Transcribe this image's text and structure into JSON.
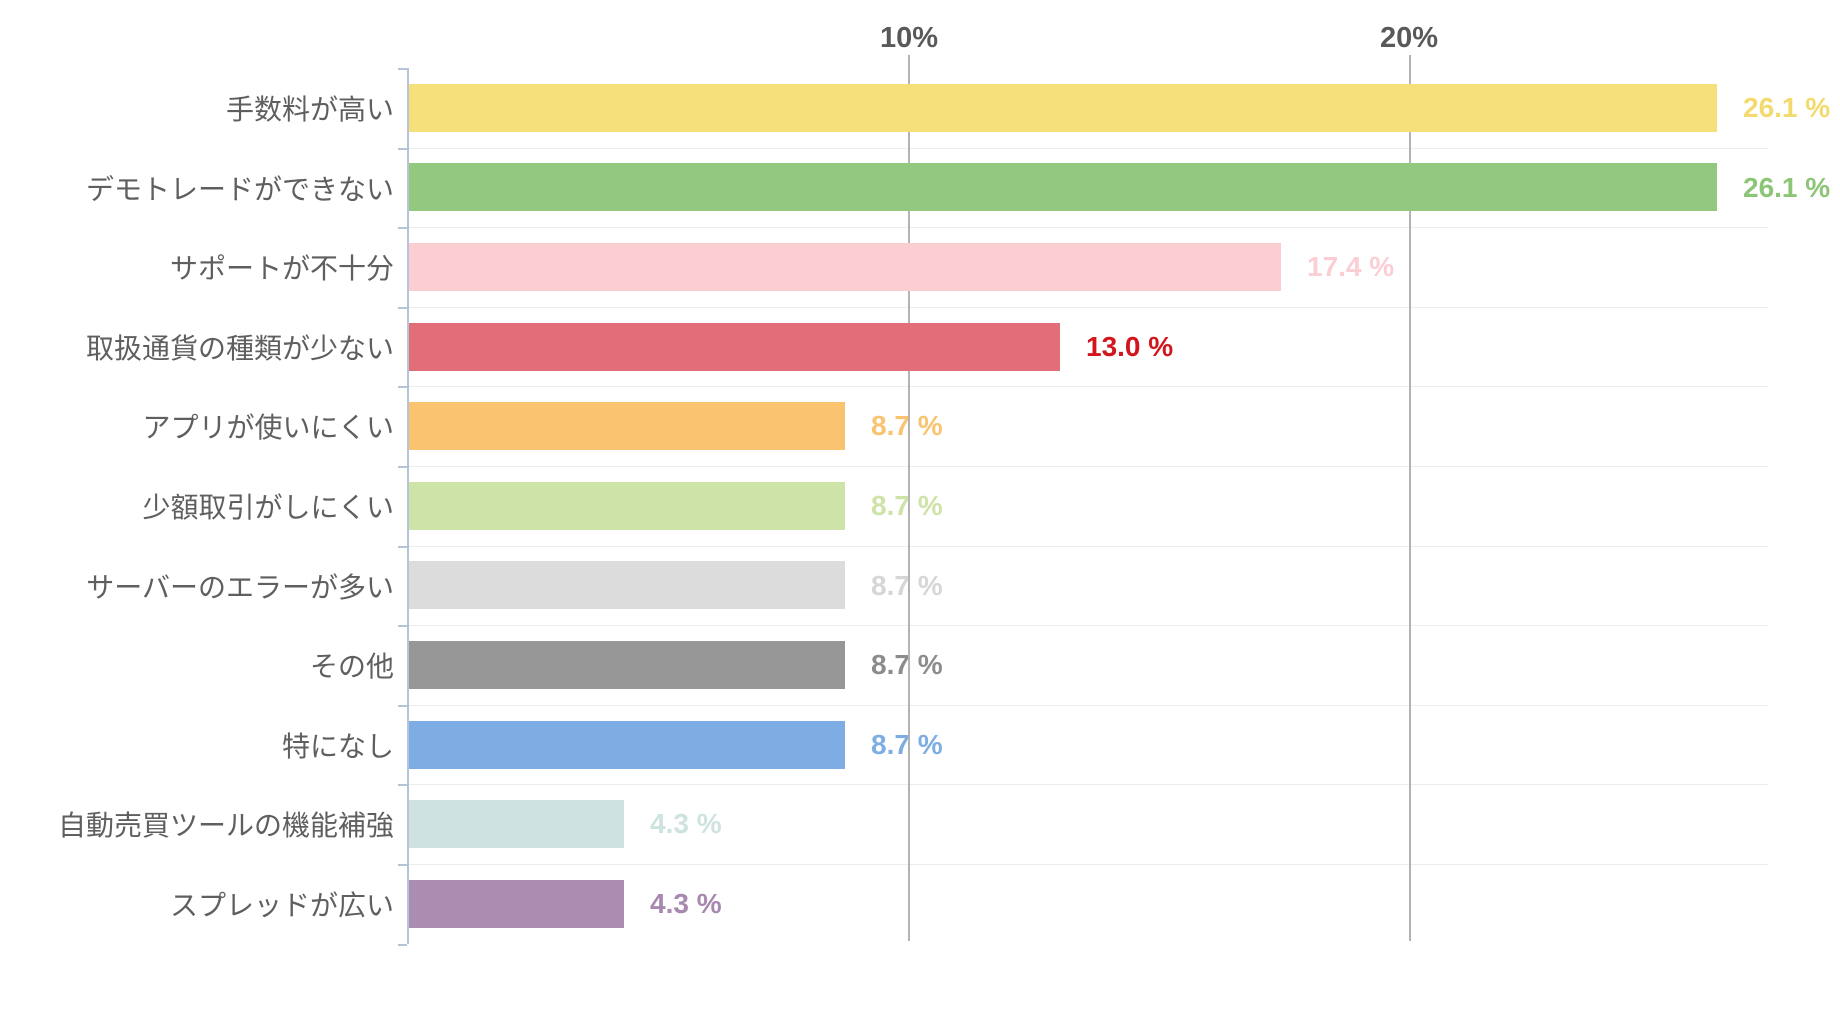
{
  "chart_data": {
    "type": "bar",
    "orientation": "horizontal",
    "title": "",
    "xlabel": "",
    "ylabel": "",
    "grid": true,
    "legend": "none",
    "xlim": [
      0,
      28.5
    ],
    "x_ticks": [
      {
        "label": "10%",
        "value": 10
      },
      {
        "label": "20%",
        "value": 20
      }
    ],
    "categories": [
      "手数料が高い",
      "デモトレードができない",
      "サポートが不十分",
      "取扱通貨の種類が少ない",
      "アプリが使いにくい",
      "少額取引がしにくい",
      "サーバーのエラーが多い",
      "その他",
      "特になし",
      "自動売買ツールの機能補強",
      "スプレッドが広い"
    ],
    "values": [
      26.1,
      26.1,
      17.4,
      13.0,
      8.7,
      8.7,
      8.7,
      8.7,
      8.7,
      4.3,
      4.3
    ],
    "value_labels": [
      "26.1 %",
      "26.1 %",
      "17.4 %",
      "13.0 %",
      "8.7 %",
      "8.7 %",
      "8.7 %",
      "8.7 %",
      "8.7 %",
      "4.3 %",
      "4.3 %"
    ],
    "bar_colors": [
      "#f6e07b",
      "#93c97e",
      "#fbced4",
      "#e26e79",
      "#fac36f",
      "#cde3a7",
      "#dcdcdc",
      "#979797",
      "#7dade3",
      "#cee3df",
      "#ab8db1"
    ],
    "value_label_colors": [
      "#f3da6e",
      "#8cc576",
      "#fbced4",
      "#d2161e",
      "#fac36f",
      "#cde3a7",
      "#d6d6d6",
      "#8c8c8c",
      "#7dade3",
      "#cee3df",
      "#a788ae"
    ],
    "axis_color": "#b6c3d9",
    "grid_color": "#b3b3b3",
    "tick_label_color": "#595959",
    "category_label_color": "#5f5f5f"
  }
}
